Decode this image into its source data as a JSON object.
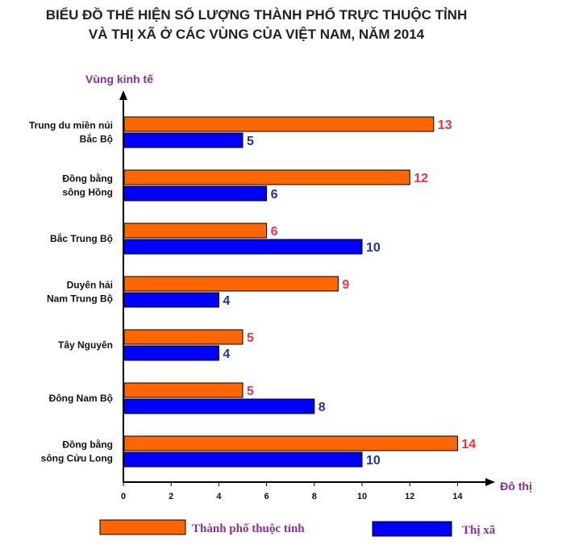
{
  "chart_data": {
    "type": "bar",
    "orientation": "horizontal",
    "title_lines": [
      "BIỂU ĐỒ THỂ HIỆN SỐ LƯỢNG THÀNH PHỐ TRỰC THUỘC TỈNH",
      "VÀ THỊ XÃ Ở CÁC VÙNG CỦA VIỆT NAM, NĂM 2014"
    ],
    "ylabel": "Vùng kinh tế",
    "xlabel": "Đô thị",
    "categories": [
      [
        "Trung du miền núi",
        "Bắc Bộ"
      ],
      [
        "Đồng bằng",
        "sông Hồng"
      ],
      [
        "Bắc Trung Bộ"
      ],
      [
        "Duyên hải",
        "Nam Trung Bộ"
      ],
      [
        "Tây Nguyên"
      ],
      [
        "Đông Nam Bộ"
      ],
      [
        "Đồng bằng",
        "sông Cửu Long"
      ]
    ],
    "series": [
      {
        "name": "Thành phố thuộc tỉnh",
        "color": "#FF6600",
        "label_color": "#EE3344",
        "values": [
          13,
          12,
          6,
          9,
          5,
          5,
          14
        ]
      },
      {
        "name": "Thị xã",
        "color": "#0000FF",
        "label_color": "#2233AA",
        "values": [
          5,
          6,
          10,
          4,
          4,
          8,
          10
        ]
      }
    ],
    "xlim": [
      0,
      15
    ],
    "xticks": [
      0,
      2,
      4,
      6,
      8,
      10,
      12,
      14
    ],
    "legend": "bottom",
    "grid": false
  }
}
